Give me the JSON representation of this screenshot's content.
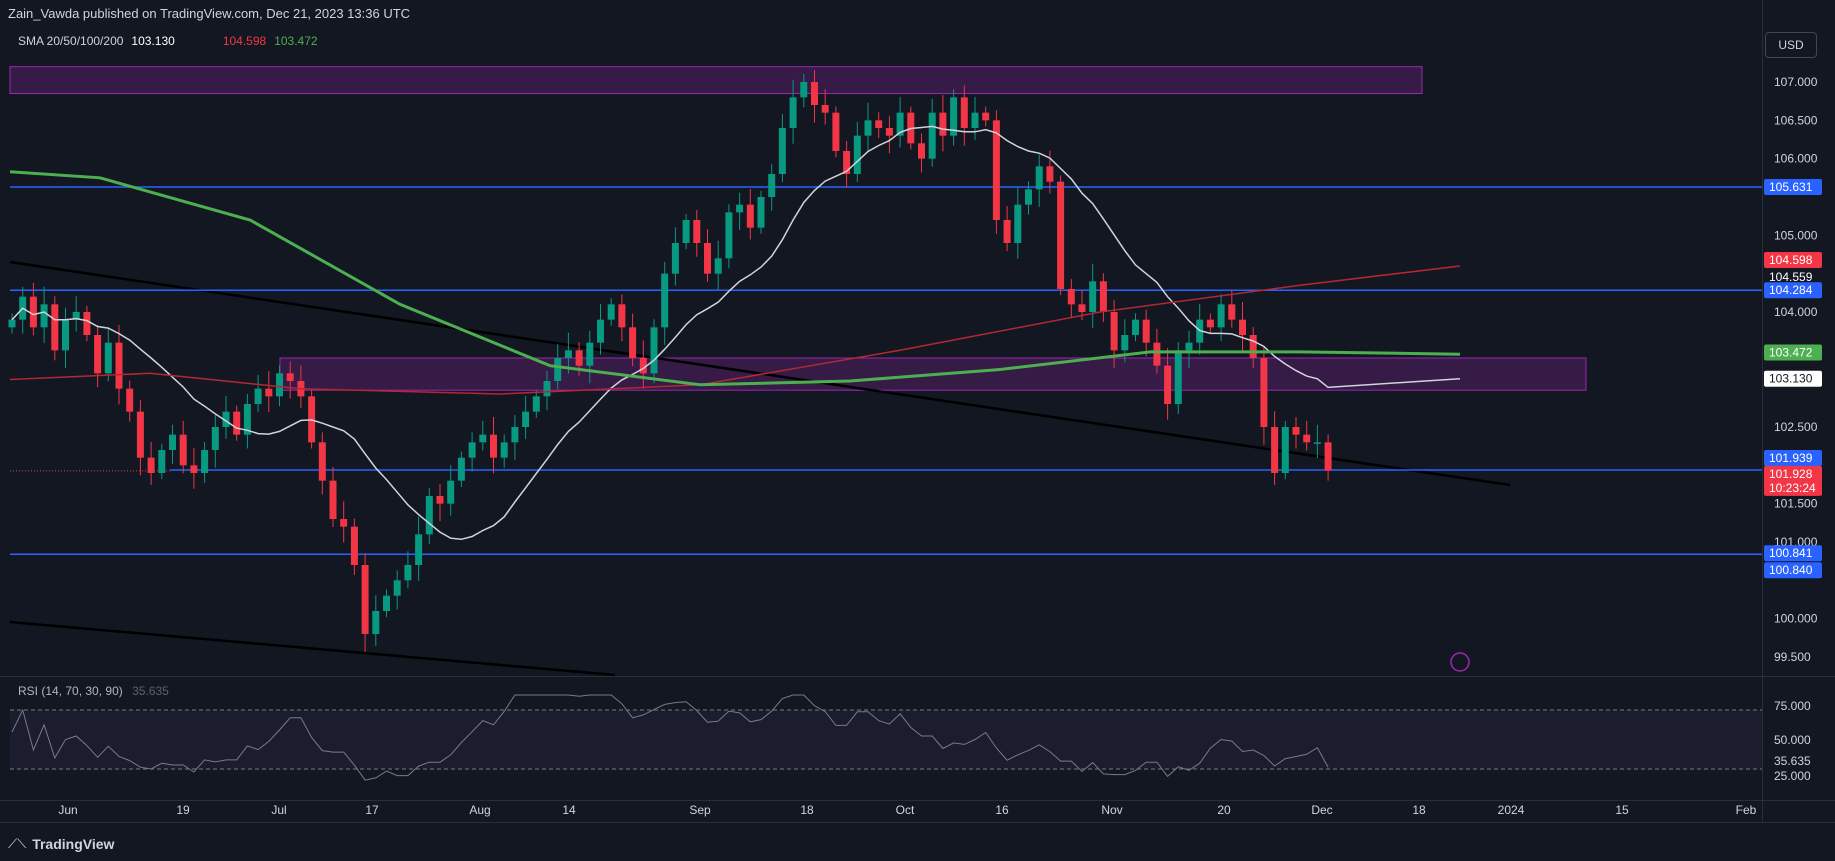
{
  "header": {
    "publisher": "Zain_Vawda published on TradingView.com, Dec 21, 2023 13:36 UTC"
  },
  "legend": {
    "label": "SMA 20/50/100/200",
    "v20": "103.130",
    "v100": "104.598",
    "v200": "103.472"
  },
  "currency_button": "USD",
  "rsi_legend": {
    "label": "RSI",
    "params": "(14, 70, 30, 90)",
    "value": "35.635"
  },
  "footer": {
    "brand": "TradingView"
  },
  "colors": {
    "bg": "#131722",
    "up": "#089981",
    "down": "#f23645",
    "sma20": "#d1d4dc",
    "sma100": "#b22833",
    "sma200": "#4caf50",
    "hline": "#2962ff",
    "zone": "#9c27b0"
  },
  "chart_data": {
    "type": "candlestick",
    "price_axis_ticks": [
      "107.000",
      "106.500",
      "106.000",
      "105.000",
      "104.000",
      "102.500",
      "101.500",
      "101.000",
      "100.000",
      "99.500"
    ],
    "time_axis_ticks": [
      "Jun",
      "19",
      "Jul",
      "17",
      "Aug",
      "14",
      "Sep",
      "18",
      "Oct",
      "16",
      "Nov",
      "20",
      "Dec",
      "18",
      "2024",
      "15",
      "Feb"
    ],
    "price_labels": [
      {
        "text": "105.631",
        "kind": "line"
      },
      {
        "text": "104.598",
        "kind": "sma100"
      },
      {
        "text": "104.559",
        "kind": "plain"
      },
      {
        "text": "104.284",
        "kind": "line"
      },
      {
        "text": "103.472",
        "kind": "sma200"
      },
      {
        "text": "103.130",
        "kind": "sma20"
      },
      {
        "text": "101.939",
        "kind": "line"
      },
      {
        "text": "101.928",
        "kind": "last"
      },
      {
        "text": "10:23:24",
        "kind": "countdown"
      },
      {
        "text": "100.841",
        "kind": "line"
      },
      {
        "text": "100.840",
        "kind": "line"
      }
    ],
    "horizontal_levels": [
      105.631,
      104.284,
      101.939,
      100.841
    ],
    "zones": [
      {
        "from": 106.85,
        "to": 107.2
      },
      {
        "from": 102.98,
        "to": 103.4
      }
    ],
    "close": [
      103.9,
      104.2,
      103.8,
      104.1,
      103.5,
      103.9,
      104.0,
      103.7,
      103.2,
      103.6,
      103.0,
      102.7,
      102.1,
      101.9,
      102.2,
      102.4,
      102.0,
      101.9,
      102.2,
      102.5,
      102.7,
      102.4,
      102.8,
      103.0,
      102.9,
      103.2,
      103.1,
      102.9,
      102.3,
      101.8,
      101.3,
      101.2,
      100.7,
      99.8,
      100.1,
      100.3,
      100.5,
      100.7,
      101.1,
      101.6,
      101.5,
      101.8,
      102.1,
      102.3,
      102.4,
      102.1,
      102.3,
      102.5,
      102.7,
      102.9,
      103.1,
      103.4,
      103.5,
      103.3,
      103.6,
      103.9,
      104.1,
      103.8,
      103.4,
      103.2,
      103.8,
      104.5,
      104.9,
      105.2,
      104.9,
      104.5,
      104.7,
      105.3,
      105.4,
      105.1,
      105.5,
      105.8,
      106.4,
      106.8,
      107.0,
      106.7,
      106.6,
      106.1,
      105.8,
      106.3,
      106.5,
      106.4,
      106.3,
      106.6,
      106.2,
      106.0,
      106.6,
      106.3,
      106.8,
      106.4,
      106.6,
      106.5,
      105.2,
      104.9,
      105.4,
      105.6,
      105.9,
      105.7,
      104.3,
      104.1,
      104.0,
      104.4,
      104.0,
      103.5,
      103.7,
      103.9,
      103.6,
      103.3,
      102.8,
      103.5,
      103.6,
      103.9,
      103.8,
      104.1,
      103.9,
      103.7,
      103.4,
      102.5,
      101.9,
      102.5,
      102.4,
      102.3,
      102.3,
      101.93
    ]
  }
}
